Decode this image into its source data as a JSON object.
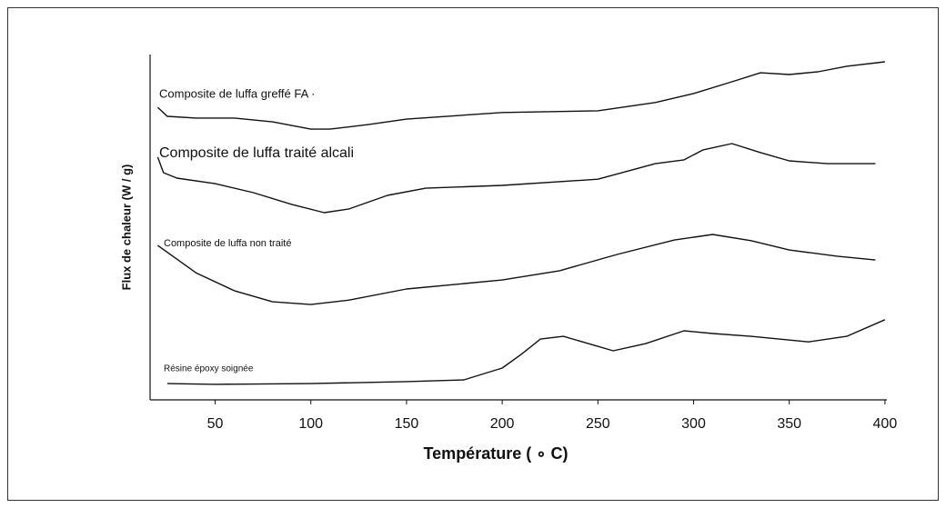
{
  "chart_data": {
    "type": "line",
    "xlabel": "Température ( ∘ C)",
    "ylabel": "Flux de chaleur (W / g)",
    "xlim": [
      16,
      401
    ],
    "xticks": [
      50,
      100,
      150,
      200,
      250,
      300,
      350,
      400
    ],
    "ylim": [
      0,
      100
    ],
    "series": [
      {
        "name": "Composite de luffa greffé FA ·",
        "color": "#111111",
        "x": [
          20,
          25,
          40,
          60,
          80,
          100,
          110,
          130,
          150,
          200,
          250,
          280,
          300,
          320,
          335,
          350,
          365,
          380,
          400
        ],
        "values": [
          84.7,
          82.1,
          81.6,
          81.6,
          80.5,
          78.4,
          78.4,
          79.7,
          81.3,
          83.2,
          83.7,
          86.1,
          88.7,
          92.1,
          94.7,
          94.2,
          95.0,
          96.6,
          97.9
        ]
      },
      {
        "name": "Composite de luffa traité alcali",
        "color": "#111111",
        "x": [
          20,
          23,
          30,
          50,
          70,
          90,
          107,
          120,
          140,
          160,
          200,
          250,
          280,
          295,
          305,
          320,
          335,
          350,
          370,
          395
        ],
        "values": [
          70.3,
          65.8,
          64.2,
          62.6,
          60.0,
          56.6,
          54.2,
          55.3,
          59.2,
          61.3,
          62.1,
          63.9,
          68.4,
          69.5,
          72.4,
          74.2,
          71.6,
          69.2,
          68.4,
          68.4
        ]
      },
      {
        "name": "Composite de luffa non traité",
        "color": "#111111",
        "x": [
          20,
          40,
          60,
          80,
          100,
          120,
          150,
          200,
          230,
          260,
          290,
          310,
          330,
          350,
          375,
          395
        ],
        "values": [
          44.7,
          36.8,
          31.6,
          28.4,
          27.6,
          28.9,
          32.1,
          34.7,
          37.4,
          42.1,
          46.3,
          47.9,
          46.1,
          43.4,
          41.6,
          40.5
        ]
      },
      {
        "name": "Résine époxy soignée",
        "color": "#111111",
        "x": [
          25,
          50,
          100,
          150,
          180,
          200,
          210,
          220,
          232,
          245,
          258,
          275,
          295,
          310,
          330,
          360,
          380,
          400
        ],
        "values": [
          4.7,
          4.5,
          4.7,
          5.3,
          5.8,
          9.2,
          13.2,
          17.6,
          18.4,
          16.3,
          14.2,
          16.3,
          20.0,
          19.2,
          18.4,
          16.8,
          18.4,
          23.2
        ]
      }
    ]
  }
}
